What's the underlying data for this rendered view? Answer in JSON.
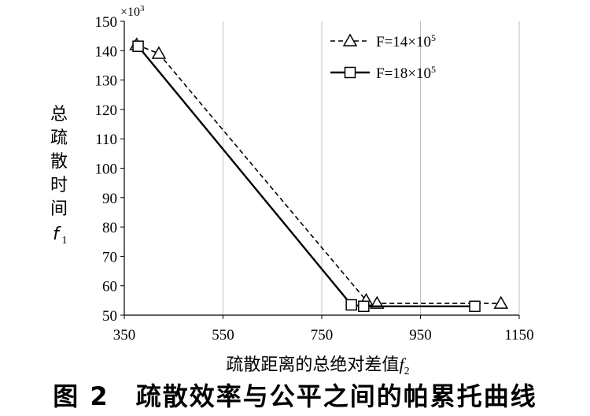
{
  "caption": "图 2　疏散效率与公平之间的帕累托曲线",
  "chart_data": {
    "type": "line",
    "xlabel": "疏散距离的总绝对差值",
    "xlabel_var": "f",
    "xlabel_sub": "2",
    "ylabel": "总疏散时间",
    "ylabel_var": "f",
    "ylabel_sub": "1",
    "y_multiplier": "×10",
    "y_multiplier_exp": "3",
    "xlim": [
      350,
      1150
    ],
    "ylim": [
      50,
      150
    ],
    "xticks": [
      350,
      550,
      750,
      950,
      1150
    ],
    "yticks": [
      50,
      60,
      70,
      80,
      90,
      100,
      110,
      120,
      130,
      140,
      150
    ],
    "grid": "x-major",
    "legend_position": "top-right",
    "series": [
      {
        "name": "F=14×10",
        "name_exp": "5",
        "marker": "triangle",
        "line": "dashed",
        "color": "#000000",
        "points": [
          [
            375,
            142
          ],
          [
            420,
            139
          ],
          [
            840,
            55
          ],
          [
            862,
            54
          ],
          [
            1113,
            54
          ]
        ]
      },
      {
        "name": "F=18×10",
        "name_exp": "5",
        "marker": "square",
        "line": "solid",
        "color": "#000000",
        "points": [
          [
            378,
            141.5
          ],
          [
            810,
            53.5
          ],
          [
            835,
            53
          ],
          [
            1060,
            53
          ]
        ]
      }
    ]
  }
}
